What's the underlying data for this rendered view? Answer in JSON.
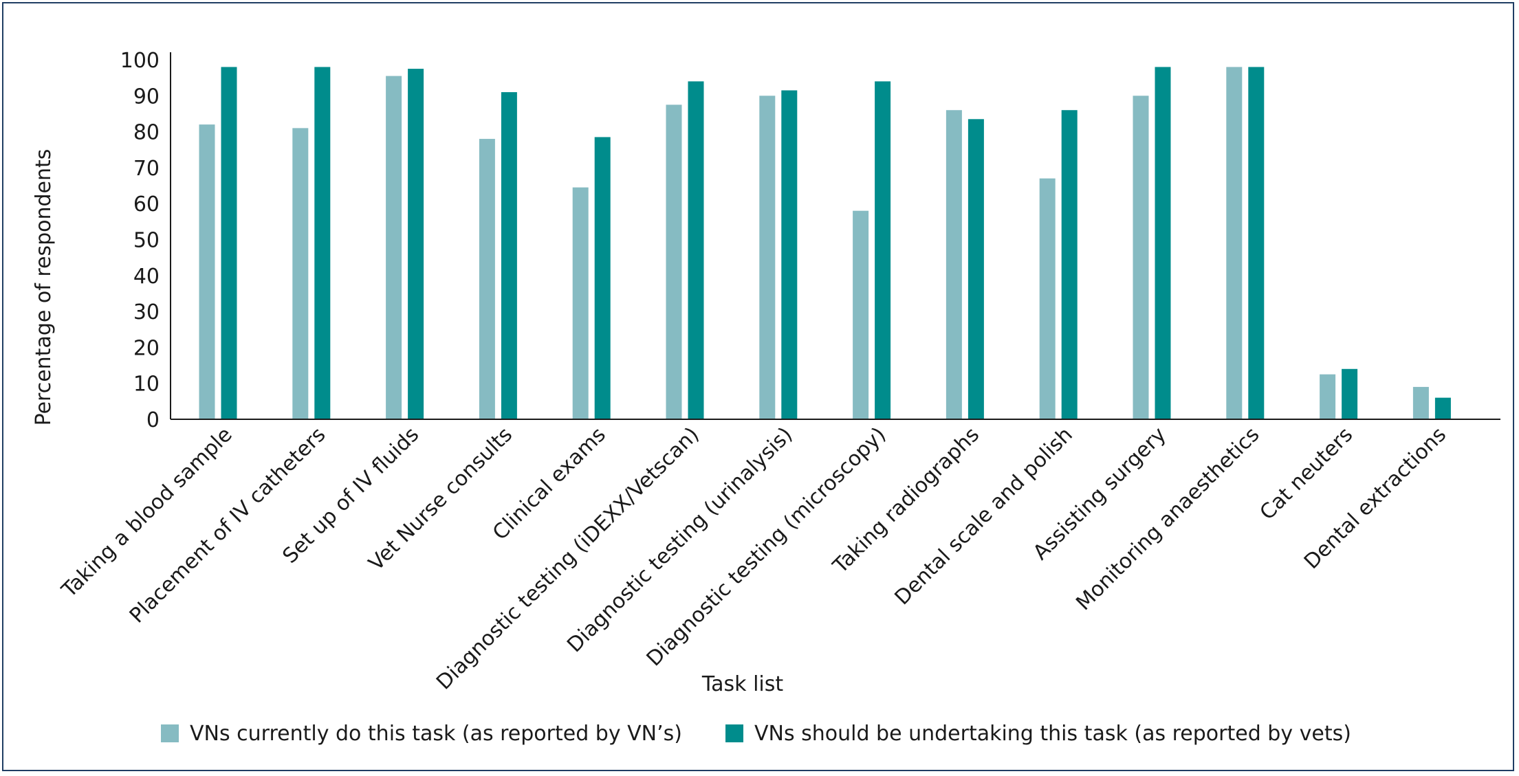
{
  "chart_data": {
    "type": "bar",
    "categories": [
      "Taking a blood sample",
      "Placement of IV catheters",
      "Set up of IV fluids",
      "Vet Nurse consults",
      "Clinical exams",
      "Diagnostic testing (iDEXX/Vetscan)",
      "Diagnostic testing (urinalysis)",
      "Diagnostic testing (microscopy)",
      "Taking radiographs",
      "Dental scale and polish",
      "Assisting surgery",
      "Monitoring anaesthetics",
      "Cat neuters",
      "Dental extractions"
    ],
    "series": [
      {
        "name": "VNs currently do this task (as reported by VN’s)",
        "color": "#86bbc2",
        "values": [
          82,
          81,
          95.5,
          78,
          64.5,
          87.5,
          90,
          58,
          86,
          67,
          90,
          98,
          12.5,
          9
        ]
      },
      {
        "name": "VNs should be undertaking this task (as reported by vets)",
        "color": "#008c8c",
        "values": [
          98,
          98,
          97.5,
          91,
          78.5,
          94,
          91.5,
          94,
          83.5,
          86,
          98,
          98,
          14,
          6
        ]
      }
    ],
    "xlabel": "Task list",
    "ylabel": "Percentage of respondents",
    "ylim": [
      0,
      100
    ],
    "yticks": [
      0,
      10,
      20,
      30,
      40,
      50,
      60,
      70,
      80,
      90,
      100
    ],
    "grid": false,
    "legend_position": "bottom"
  }
}
